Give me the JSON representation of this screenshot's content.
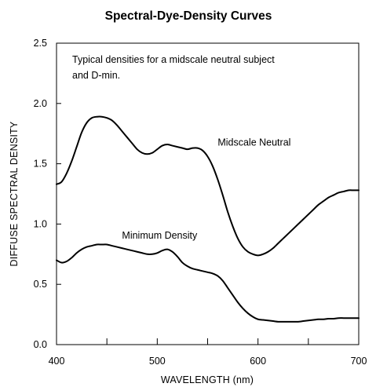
{
  "chart_data": {
    "type": "line",
    "title": "Spectral-Dye-Density Curves",
    "xlabel": "WAVELENGTH (nm)",
    "ylabel": "DIFFUSE SPECTRAL DENSITY",
    "xlim": [
      400,
      700
    ],
    "ylim": [
      0.0,
      2.5
    ],
    "x_ticks": [
      400,
      500,
      600,
      700
    ],
    "x_tick_labels": [
      "400",
      "500",
      "600",
      "700"
    ],
    "x_minor_ticks": [
      450,
      550,
      650
    ],
    "y_ticks": [
      0.0,
      0.5,
      1.0,
      1.5,
      2.0,
      2.5
    ],
    "y_tick_labels": [
      "0.0",
      "0.5",
      "1.0",
      "1.5",
      "2.0",
      "2.5"
    ],
    "grid": false,
    "annotation": [
      "Typical densities for a midscale neutral subject",
      "and D-min."
    ],
    "series": [
      {
        "name": "Midscale Neutral",
        "x": [
          400,
          405,
          410,
          415,
          420,
          425,
          430,
          435,
          440,
          445,
          450,
          455,
          460,
          465,
          470,
          475,
          480,
          485,
          490,
          495,
          500,
          505,
          510,
          515,
          520,
          525,
          530,
          535,
          540,
          545,
          550,
          555,
          560,
          565,
          570,
          575,
          580,
          585,
          590,
          595,
          600,
          605,
          610,
          615,
          620,
          625,
          630,
          635,
          640,
          645,
          650,
          655,
          660,
          665,
          670,
          675,
          680,
          685,
          690,
          695,
          700
        ],
        "values": [
          1.33,
          1.35,
          1.42,
          1.52,
          1.64,
          1.76,
          1.84,
          1.88,
          1.89,
          1.89,
          1.88,
          1.86,
          1.82,
          1.77,
          1.72,
          1.67,
          1.62,
          1.59,
          1.58,
          1.59,
          1.62,
          1.65,
          1.66,
          1.65,
          1.64,
          1.63,
          1.62,
          1.63,
          1.63,
          1.61,
          1.56,
          1.48,
          1.37,
          1.24,
          1.1,
          0.98,
          0.88,
          0.81,
          0.77,
          0.75,
          0.74,
          0.75,
          0.77,
          0.8,
          0.84,
          0.88,
          0.92,
          0.96,
          1.0,
          1.04,
          1.08,
          1.12,
          1.16,
          1.19,
          1.22,
          1.24,
          1.26,
          1.27,
          1.28,
          1.28,
          1.28
        ],
        "label_x": 560,
        "label_y": 1.65
      },
      {
        "name": "Minimum Density",
        "x": [
          400,
          405,
          410,
          415,
          420,
          425,
          430,
          435,
          440,
          445,
          450,
          455,
          460,
          465,
          470,
          475,
          480,
          485,
          490,
          495,
          500,
          505,
          510,
          515,
          520,
          525,
          530,
          535,
          540,
          545,
          550,
          555,
          560,
          565,
          570,
          575,
          580,
          585,
          590,
          595,
          600,
          605,
          610,
          615,
          620,
          625,
          630,
          635,
          640,
          645,
          650,
          655,
          660,
          665,
          670,
          675,
          680,
          685,
          690,
          695,
          700
        ],
        "values": [
          0.7,
          0.68,
          0.69,
          0.72,
          0.76,
          0.79,
          0.81,
          0.82,
          0.83,
          0.83,
          0.83,
          0.82,
          0.81,
          0.8,
          0.79,
          0.78,
          0.77,
          0.76,
          0.75,
          0.75,
          0.76,
          0.78,
          0.79,
          0.77,
          0.73,
          0.68,
          0.65,
          0.63,
          0.62,
          0.61,
          0.6,
          0.59,
          0.57,
          0.53,
          0.47,
          0.41,
          0.35,
          0.3,
          0.26,
          0.23,
          0.21,
          0.205,
          0.2,
          0.195,
          0.19,
          0.19,
          0.19,
          0.19,
          0.19,
          0.195,
          0.2,
          0.205,
          0.21,
          0.21,
          0.215,
          0.215,
          0.22,
          0.22,
          0.22,
          0.22,
          0.22
        ],
        "label_x": 465,
        "label_y": 0.88
      }
    ]
  }
}
